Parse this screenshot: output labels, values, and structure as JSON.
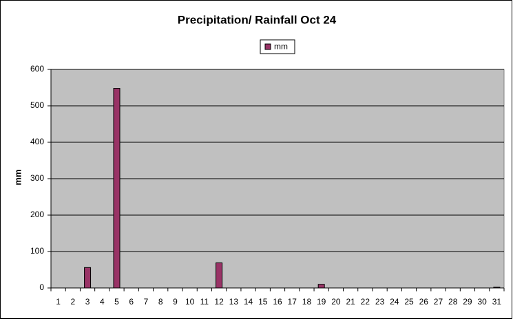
{
  "chart_data": {
    "type": "bar",
    "title": "Precipitation/ Rainfall Oct 24",
    "y_label": "mm",
    "categories": [
      1,
      2,
      3,
      4,
      5,
      6,
      7,
      8,
      9,
      10,
      11,
      12,
      13,
      14,
      15,
      16,
      17,
      18,
      19,
      20,
      21,
      22,
      23,
      24,
      25,
      26,
      27,
      28,
      29,
      30,
      31
    ],
    "series": [
      {
        "name": "mm",
        "color": "#993366",
        "values": [
          0,
          0,
          56,
          0,
          548,
          0,
          0,
          0,
          0,
          0,
          0,
          69,
          0,
          0,
          0,
          0,
          0,
          0,
          10,
          0,
          0,
          0,
          0,
          0,
          0,
          0,
          0,
          0,
          0,
          0,
          2
        ]
      }
    ],
    "ylim": [
      0,
      600
    ],
    "yticks": [
      0,
      100,
      200,
      300,
      400,
      500,
      600
    ],
    "grid": true,
    "legend": "top"
  }
}
